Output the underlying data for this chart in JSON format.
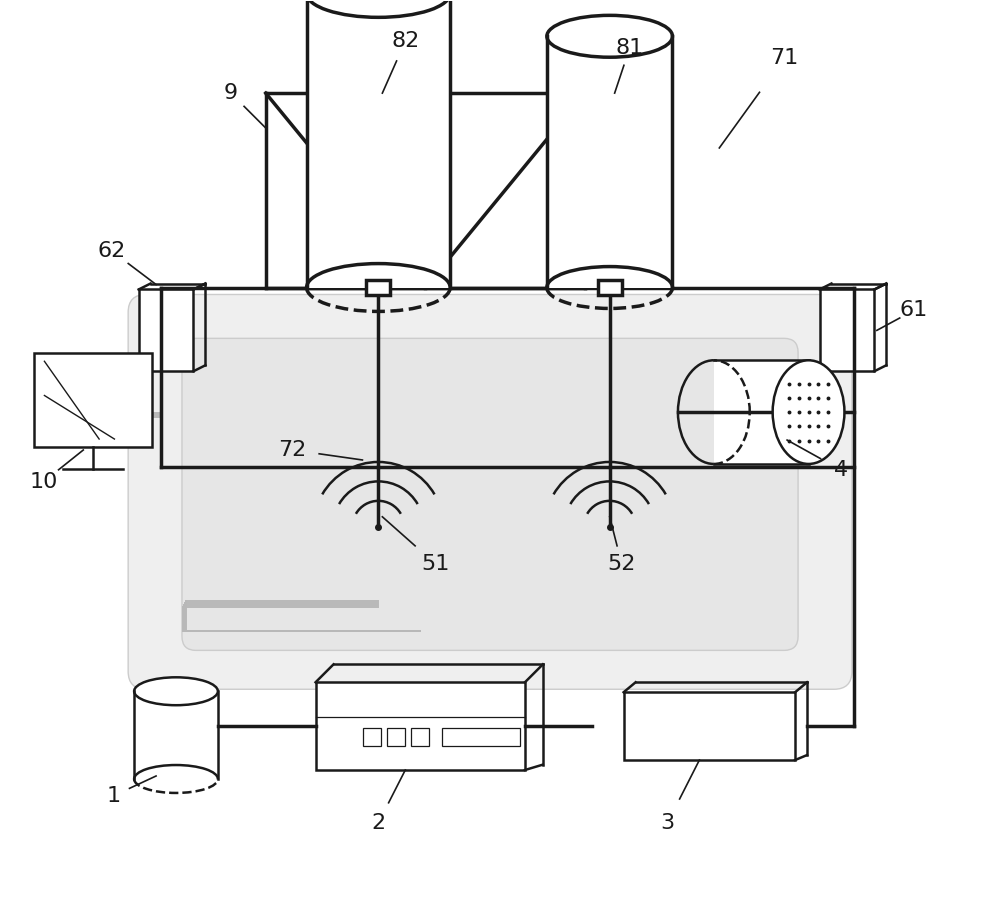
{
  "line_color": "#1a1a1a",
  "cable_color": "#b8b8b8",
  "lw_thick": 2.5,
  "lw_med": 1.8,
  "lw_thin": 1.2,
  "label_fs": 16
}
